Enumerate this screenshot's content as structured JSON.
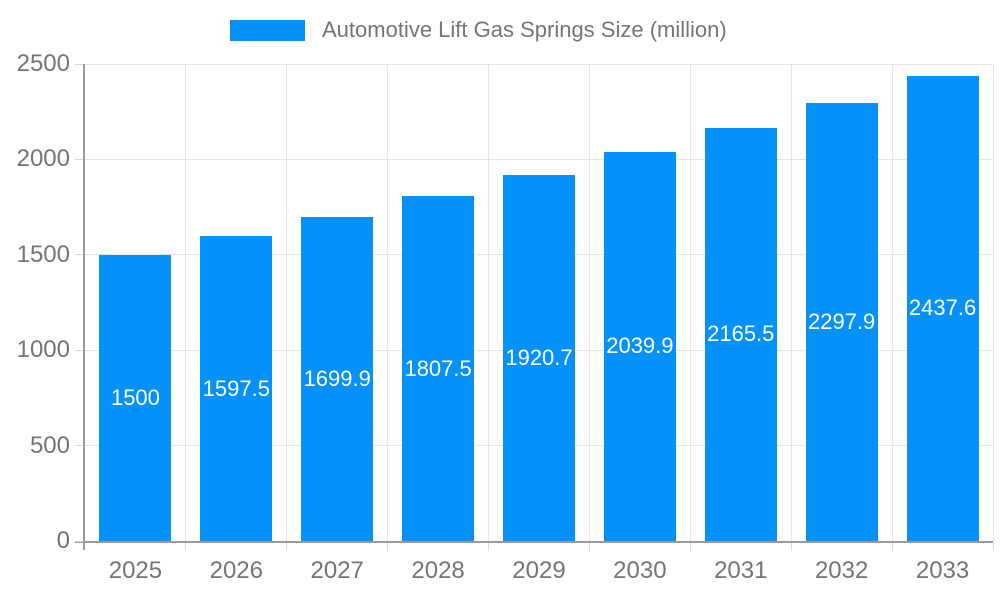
{
  "legend": {
    "label": "Automotive Lift Gas Springs Size (million)"
  },
  "colors": {
    "bar": "#0591fa",
    "grid": "#e6e6e6",
    "axis": "#9b9b9b",
    "tick_mark": "#d9d9d9",
    "tick_text": "#757575",
    "data_label": "#ffffff",
    "background": "#ffffff"
  },
  "chart_data": {
    "type": "bar",
    "title": "Automotive Lift Gas Springs Size (million)",
    "categories": [
      "2025",
      "2026",
      "2027",
      "2028",
      "2029",
      "2030",
      "2031",
      "2032",
      "2033"
    ],
    "values": [
      1500,
      1597.5,
      1699.9,
      1807.5,
      1920.7,
      2039.9,
      2165.5,
      2297.9,
      2437.6
    ],
    "value_labels": [
      "1500",
      "1597.5",
      "1699.9",
      "1807.5",
      "1920.7",
      "2039.9",
      "2165.5",
      "2297.9",
      "2437.6"
    ],
    "y_ticks": [
      0,
      500,
      1000,
      1500,
      2000,
      2500
    ],
    "y_tick_labels": [
      "0",
      "500",
      "1000",
      "1500",
      "2000",
      "2500"
    ],
    "ylim": [
      0,
      2500
    ],
    "xlabel": "",
    "ylabel": "",
    "grid": true,
    "legend_position": "top",
    "data_label_position": "center"
  }
}
